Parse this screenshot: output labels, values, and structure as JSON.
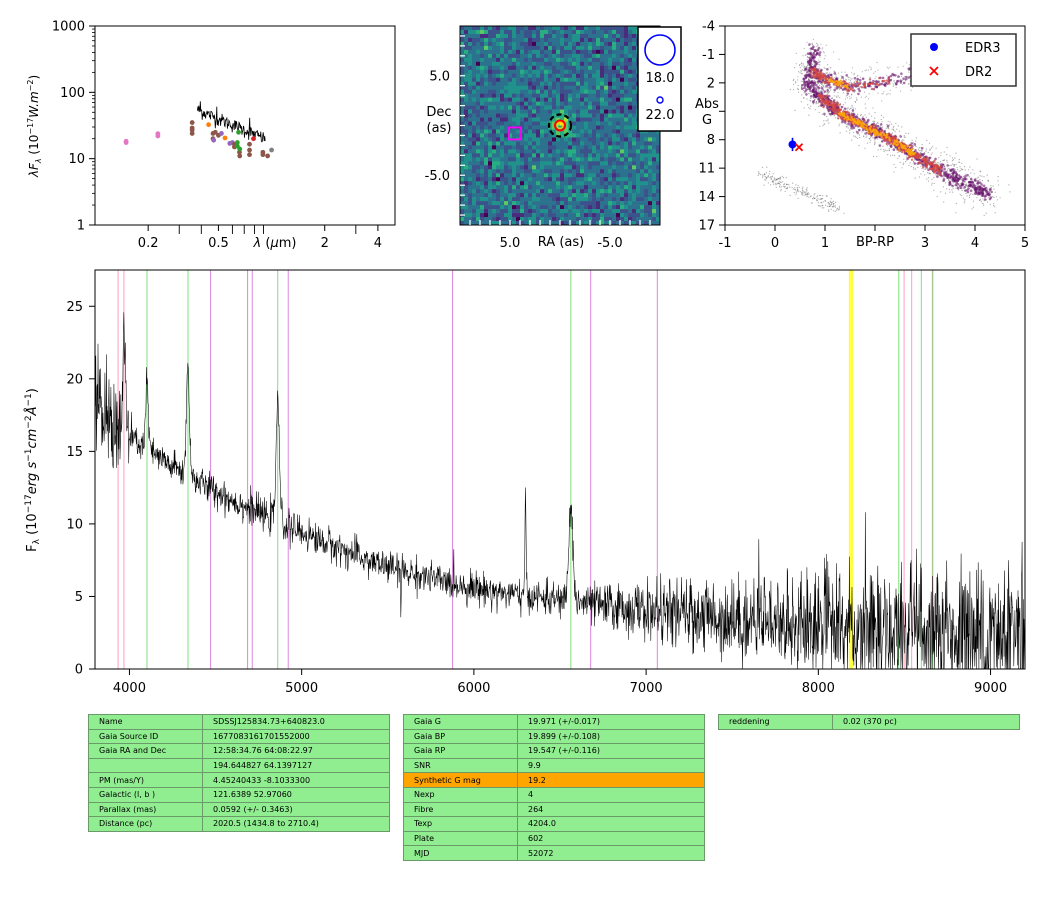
{
  "colors": {
    "table_cell": "#90ee90",
    "table_highlight": "#ffa500",
    "spectrum_line": "#000000",
    "line_marker_pink": "#ff9ec0",
    "line_marker_green": "#7fe07f",
    "line_marker_violet": "#dd88dd",
    "line_marker_yellow": "#ffff33",
    "edr3_marker": "#0000ff",
    "dr2_marker": "#ff0000"
  },
  "chart_data": [
    {
      "type": "scatter",
      "name": "sed",
      "xlabel": "λ (μm)",
      "ylabel": "λF_λ (10^-17 W.m^-2)",
      "ylabel_main": "λF",
      "ylabel_sub": "λ",
      "ylabel_unit": "(10",
      "ylabel_exp": "−17",
      "ylabel_tail": "W.m",
      "ylabel_exp2": "−2",
      "ylabel_close": ")",
      "x_scale": "log",
      "y_scale": "log",
      "xlim": [
        0.1,
        5.0
      ],
      "ylim": [
        1,
        1000
      ],
      "x_ticks": [
        0.2,
        0.5,
        2,
        4
      ],
      "x_tick_labels": [
        "0.2",
        "0.5",
        "2",
        "4"
      ],
      "y_ticks": [
        1,
        10,
        100,
        1000
      ],
      "y_tick_labels": [
        "1",
        "10",
        "100",
        "1000"
      ],
      "photometry_points": [
        {
          "x": 0.15,
          "y": 17.5,
          "color": "#e377c2"
        },
        {
          "x": 0.15,
          "y": 18.3,
          "color": "#e377c2"
        },
        {
          "x": 0.227,
          "y": 22.0,
          "color": "#e377c2"
        },
        {
          "x": 0.227,
          "y": 23.8,
          "color": "#e377c2"
        },
        {
          "x": 0.355,
          "y": 24.0,
          "color": "#8c564b"
        },
        {
          "x": 0.355,
          "y": 27.0,
          "color": "#8c564b"
        },
        {
          "x": 0.355,
          "y": 29.0,
          "color": "#8c564b"
        },
        {
          "x": 0.355,
          "y": 35.0,
          "color": "#8c564b"
        },
        {
          "x": 0.44,
          "y": 32.5,
          "color": "#ff7f0e"
        },
        {
          "x": 0.466,
          "y": 24.0,
          "color": "#8c564b"
        },
        {
          "x": 0.466,
          "y": 20.0,
          "color": "#8c564b"
        },
        {
          "x": 0.48,
          "y": 25.0,
          "color": "#8c564b"
        },
        {
          "x": 0.5,
          "y": 22.5,
          "color": "#8c564b"
        },
        {
          "x": 0.47,
          "y": 19.0,
          "color": "#9467bd"
        },
        {
          "x": 0.52,
          "y": 24.0,
          "color": "#9467bd"
        },
        {
          "x": 0.545,
          "y": 20.5,
          "color": "#ff7f0e"
        },
        {
          "x": 0.58,
          "y": 17.0,
          "color": "#9467bd"
        },
        {
          "x": 0.6,
          "y": 17.5,
          "color": "#9467bd"
        },
        {
          "x": 0.616,
          "y": 16.5,
          "color": "#8c564b"
        },
        {
          "x": 0.616,
          "y": 15.0,
          "color": "#8c564b"
        },
        {
          "x": 0.64,
          "y": 15.5,
          "color": "#2ca02c"
        },
        {
          "x": 0.64,
          "y": 17.5,
          "color": "#2ca02c"
        },
        {
          "x": 0.65,
          "y": 25.0,
          "color": "#2ca02c"
        },
        {
          "x": 0.658,
          "y": 12.5,
          "color": "#8c564b"
        },
        {
          "x": 0.66,
          "y": 14.0,
          "color": "#2ca02c"
        },
        {
          "x": 0.66,
          "y": 11.0,
          "color": "#8c564b"
        },
        {
          "x": 0.75,
          "y": 13.5,
          "color": "#8c564b"
        },
        {
          "x": 0.75,
          "y": 11.5,
          "color": "#8c564b"
        },
        {
          "x": 0.75,
          "y": 16.5,
          "color": "#8c564b"
        },
        {
          "x": 0.79,
          "y": 20.0,
          "color": "#d62728"
        },
        {
          "x": 0.893,
          "y": 11.5,
          "color": "#8c564b"
        },
        {
          "x": 0.893,
          "y": 12.5,
          "color": "#8c564b"
        },
        {
          "x": 0.95,
          "y": 11.0,
          "color": "#8c564b"
        },
        {
          "x": 1.0,
          "y": 13.5,
          "color": "#7f7f7f"
        }
      ],
      "spectrum_segment": {
        "x_start": 0.38,
        "x_end": 0.92,
        "y_start": 55,
        "y_end": 20
      }
    },
    {
      "type": "heatmap",
      "name": "cutout",
      "xlabel": "RA (as)",
      "ylabel": "Dec (as)",
      "ylabel_line1": "Dec",
      "ylabel_line2": "(as)",
      "xlim": [
        10,
        -10
      ],
      "ylim": [
        -10,
        10
      ],
      "x_tick_labels": [
        "5.0",
        "-5.0"
      ],
      "x_ticks": [
        5,
        -5
      ],
      "y_tick_labels": [
        "5.0",
        "-5.0"
      ],
      "y_ticks": [
        5,
        -5
      ],
      "target": {
        "x": 0,
        "y": 0
      },
      "comparison_box": {
        "x": 4.5,
        "y": -0.8
      },
      "legend": [
        {
          "label": "18.0",
          "symbol": "large-circle"
        },
        {
          "label": "22.0",
          "symbol": "small-circle"
        }
      ]
    },
    {
      "type": "scatter",
      "name": "hr-diagram",
      "xlabel": "BP-RP",
      "ylabel": "Abs G",
      "ylabel_line1": "Abs",
      "ylabel_line2": "G",
      "xlim": [
        -1,
        5
      ],
      "ylim": [
        17,
        -4
      ],
      "x_ticks": [
        -1,
        0,
        1,
        3,
        4,
        5
      ],
      "x_tick_labels": [
        "-1",
        "0",
        "1",
        "3",
        "4",
        "5"
      ],
      "y_ticks": [
        -4,
        -1,
        2,
        8,
        11,
        14,
        17
      ],
      "y_tick_labels": [
        "-4",
        "-1",
        "2",
        "8",
        "11",
        "14",
        "17"
      ],
      "points": [
        {
          "name": "EDR3",
          "x": 0.35,
          "y": 8.5,
          "yerr": 0.7,
          "marker": "circle",
          "color": "#0000ff"
        },
        {
          "name": "DR2",
          "x": 0.48,
          "y": 8.8,
          "marker": "x",
          "color": "#ff0000"
        }
      ],
      "legend": [
        {
          "label": "EDR3",
          "marker": "circle",
          "color": "#0000ff"
        },
        {
          "label": "DR2",
          "marker": "x",
          "color": "#ff0000"
        }
      ],
      "legend_placement": "top-right"
    },
    {
      "type": "line",
      "name": "spectrum",
      "xlabel": "",
      "ylabel": "F_λ (10^-17 erg s^-1 cm^-2 Å^-1)",
      "ylabel_main": "F",
      "ylabel_sub": "λ",
      "ylabel_unit": "(10",
      "ylabel_exp": "−17",
      "ylabel_erg": "erg s",
      "ylabel_exp1": "−1",
      "ylabel_cm": "cm",
      "ylabel_exp2": "−2",
      "ylabel_ang": "Å",
      "ylabel_exp3": "−1",
      "ylabel_close": ")",
      "xlim": [
        3800,
        9200
      ],
      "ylim": [
        0,
        27.5
      ],
      "x_ticks": [
        4000,
        5000,
        6000,
        7000,
        8000,
        9000
      ],
      "x_tick_labels": [
        "4000",
        "5000",
        "6000",
        "7000",
        "8000",
        "9000"
      ],
      "y_ticks": [
        0,
        5,
        10,
        15,
        20,
        25
      ],
      "y_tick_labels": [
        "0",
        "5",
        "10",
        "15",
        "20",
        "25"
      ],
      "continuum": [
        {
          "x": 3800,
          "y": 18.0
        },
        {
          "x": 4000,
          "y": 16.0
        },
        {
          "x": 4200,
          "y": 14.3
        },
        {
          "x": 4400,
          "y": 12.9
        },
        {
          "x": 4600,
          "y": 11.6
        },
        {
          "x": 4800,
          "y": 10.5
        },
        {
          "x": 5000,
          "y": 9.4
        },
        {
          "x": 5200,
          "y": 8.4
        },
        {
          "x": 5400,
          "y": 7.4
        },
        {
          "x": 5600,
          "y": 6.7
        },
        {
          "x": 5800,
          "y": 6.1
        },
        {
          "x": 6000,
          "y": 5.6
        },
        {
          "x": 6200,
          "y": 5.2
        },
        {
          "x": 6400,
          "y": 4.9
        },
        {
          "x": 6600,
          "y": 4.6
        },
        {
          "x": 6800,
          "y": 4.3
        },
        {
          "x": 7000,
          "y": 4.0
        },
        {
          "x": 7400,
          "y": 3.6
        },
        {
          "x": 7800,
          "y": 3.2
        },
        {
          "x": 8200,
          "y": 2.8
        },
        {
          "x": 8600,
          "y": 2.5
        },
        {
          "x": 9000,
          "y": 2.2
        },
        {
          "x": 9200,
          "y": 2.1
        }
      ],
      "emission_features": [
        {
          "x": 3970,
          "amplitude": 6.0,
          "width": 8
        },
        {
          "x": 4102,
          "amplitude": 4.5,
          "width": 8
        },
        {
          "x": 4340,
          "amplitude": 7.5,
          "width": 9
        },
        {
          "x": 4861,
          "amplitude": 8.0,
          "width": 10
        },
        {
          "x": 6300,
          "amplitude": 7.0,
          "width": 3
        },
        {
          "x": 6563,
          "amplitude": 6.5,
          "width": 12
        }
      ],
      "line_markers": [
        {
          "x": 3934,
          "color": "#ff9ec0"
        },
        {
          "x": 3968,
          "color": "#ff9ec0"
        },
        {
          "x": 4102,
          "color": "#7fe07f"
        },
        {
          "x": 4340,
          "color": "#7fe07f"
        },
        {
          "x": 4471,
          "color": "#dd88dd"
        },
        {
          "x": 4686,
          "color": "#dd88dd"
        },
        {
          "x": 4713,
          "color": "#dd88dd"
        },
        {
          "x": 4861,
          "color": "#7fe07f"
        },
        {
          "x": 4922,
          "color": "#dd88dd"
        },
        {
          "x": 5876,
          "color": "#dd88dd"
        },
        {
          "x": 6563,
          "color": "#7fe07f"
        },
        {
          "x": 6678,
          "color": "#dd88dd"
        },
        {
          "x": 7065,
          "color": "#dd88dd"
        },
        {
          "x": 8183,
          "color": "#ffff33"
        },
        {
          "x": 8195,
          "color": "#ffff33"
        },
        {
          "x": 8467,
          "color": "#7fe07f"
        },
        {
          "x": 8498,
          "color": "#ff9ec0"
        },
        {
          "x": 8542,
          "color": "#ff9ec0"
        },
        {
          "x": 8598,
          "color": "#7fe07f"
        },
        {
          "x": 8662,
          "color": "#ff9ec0"
        },
        {
          "x": 8665,
          "color": "#7fe07f"
        }
      ]
    }
  ],
  "tables": {
    "object": [
      {
        "label": "Name",
        "value": "SDSSJ125834.73+640823.0"
      },
      {
        "label": "Gaia Source ID",
        "value": "1677083161701552000"
      },
      {
        "label": "Gaia RA and Dec",
        "value": "12:58:34.76    64:08:22.97"
      },
      {
        "label": "",
        "value": "194.644827    64.1397127"
      },
      {
        "label": "PM (mas/Y)",
        "value": "4.45240433    -8.1033300"
      },
      {
        "label": "Galactic (l, b )",
        "value": "121.6389    52.97060"
      },
      {
        "label": "Parallax (mas)",
        "value": "0.0592 (+/- 0.3463)"
      },
      {
        "label": "Distance (pc)",
        "value": "2020.5 (1434.8 to 2710.4)"
      }
    ],
    "photometry": [
      {
        "label": "Gaia G",
        "value": "19.971 (+/-0.017)",
        "highlight": false
      },
      {
        "label": "Gaia BP",
        "value": "19.899 (+/-0.108)",
        "highlight": false
      },
      {
        "label": "Gaia RP",
        "value": "19.547 (+/-0.116)",
        "highlight": false
      },
      {
        "label": "SNR",
        "value": "9.9",
        "highlight": false
      },
      {
        "label": "Synthetic G mag",
        "value": "19.2",
        "highlight": true
      },
      {
        "label": "Nexp",
        "value": "4",
        "highlight": false
      },
      {
        "label": "Fibre",
        "value": "264",
        "highlight": false
      },
      {
        "label": "Texp",
        "value": "4204.0",
        "highlight": false
      },
      {
        "label": "Plate",
        "value": "602",
        "highlight": false
      },
      {
        "label": "MJD",
        "value": "52072",
        "highlight": false
      }
    ],
    "extinction": [
      {
        "label": "reddening",
        "value": "0.02 (370 pc)"
      }
    ]
  }
}
